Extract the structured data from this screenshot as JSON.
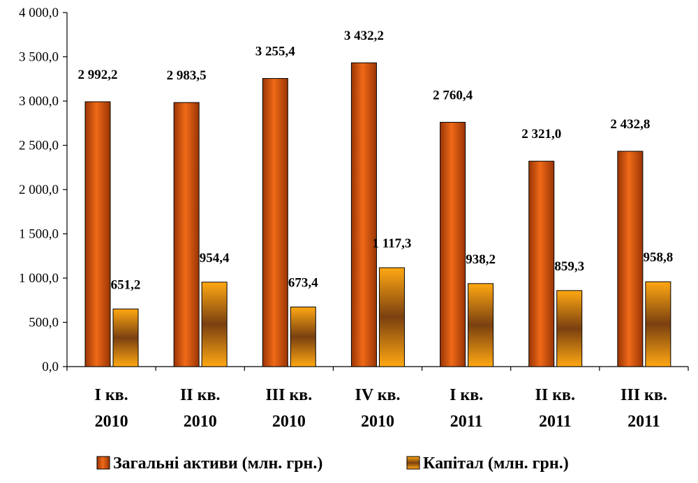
{
  "chart_data": {
    "type": "bar",
    "categories": [
      [
        "I кв.",
        "2010"
      ],
      [
        "II кв.",
        "2010"
      ],
      [
        "III кв.",
        "2010"
      ],
      [
        "IV кв.",
        "2010"
      ],
      [
        "I кв.",
        "2011"
      ],
      [
        "II кв.",
        "2011"
      ],
      [
        "III кв.",
        "2011"
      ]
    ],
    "series": [
      {
        "name": "Загальні активи (млн. грн.)",
        "values": [
          2992.2,
          2983.5,
          3255.4,
          3432.2,
          2760.4,
          2321.0,
          2432.8
        ],
        "labels": [
          "2 992,2",
          "2 983,5",
          "3 255,4",
          "3 432,2",
          "2 760,4",
          "2 321,0",
          "2 432,8"
        ],
        "colors": [
          "#a23a06",
          "#e05d10",
          "#a23a06"
        ]
      },
      {
        "name": "Капітал (млн. грн.)",
        "values": [
          651.2,
          954.4,
          673.4,
          1117.3,
          938.2,
          859.3,
          958.8
        ],
        "labels": [
          "651,2",
          "954,4",
          "673,4",
          "1 117,3",
          "938,2",
          "859,3",
          "958,8"
        ],
        "colors": [
          "#ffa010",
          "#6e3a0a",
          "#ffa010"
        ]
      }
    ],
    "ylim": [
      0,
      4000
    ],
    "yticks": [
      0,
      500,
      1000,
      1500,
      2000,
      2500,
      3000,
      3500,
      4000
    ],
    "ytick_labels": [
      "0,0",
      "500,0",
      "1 000,0",
      "1 500,0",
      "2 000,0",
      "2 500,0",
      "3 000,0",
      "3 500,0",
      "4 000,0"
    ],
    "legend_position": "bottom",
    "grid": false
  }
}
